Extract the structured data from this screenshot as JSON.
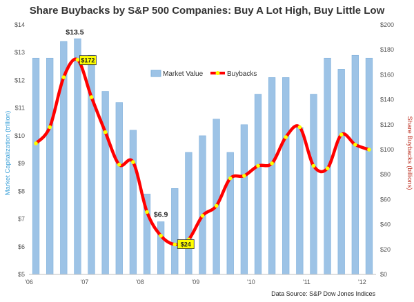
{
  "chart_data": {
    "type": "bar+line",
    "title": "Share Buybacks by S&P 500 Companies: Buy A Lot High, Buy Little Low",
    "ylabel_left": "Market Capitalization (trillion)",
    "ylabel_right": "Share Buybacks (billions)",
    "y_left_ticks": [
      "$5",
      "$6",
      "$7",
      "$8",
      "$9",
      "$10",
      "$11",
      "$12",
      "$13",
      "$14"
    ],
    "y_left_range": [
      5,
      14
    ],
    "y_right_ticks": [
      "$0",
      "$20",
      "$40",
      "$60",
      "$80",
      "$100",
      "$120",
      "$140",
      "$160",
      "$180",
      "$200"
    ],
    "y_right_range": [
      0,
      200
    ],
    "x_tick_labels": [
      "'06",
      "'07",
      "'08",
      "'09",
      "'10",
      "'11",
      "'12"
    ],
    "legend": {
      "position": "top-center",
      "bar_label": "Market Value",
      "line_label": "Buybacks"
    },
    "market_value": [
      12.8,
      12.8,
      13.4,
      13.5,
      12.9,
      11.6,
      11.2,
      10.2,
      7.9,
      6.9,
      8.1,
      9.4,
      10.0,
      10.6,
      9.4,
      10.4,
      11.5,
      12.1,
      12.1,
      10.3,
      11.5,
      12.8,
      12.4,
      12.9,
      12.8
    ],
    "buybacks": [
      105,
      118,
      158,
      172,
      142,
      114,
      88,
      90,
      50,
      31,
      24,
      28,
      47,
      55,
      77,
      79,
      87,
      89,
      110,
      118,
      87,
      85,
      112,
      104,
      100
    ],
    "annotations": {
      "market_value_high": {
        "label": "$13.5",
        "index": 3
      },
      "market_value_low": {
        "label": "$6.9",
        "index": 9
      },
      "buyback_high": {
        "label": "$172",
        "index": 3
      },
      "buyback_low": {
        "label": "$24",
        "index": 10
      }
    },
    "source": "Data Source: S&P Dow Jones Indices",
    "colors": {
      "bar": "#9dc3e6",
      "bar_edge": "#7fb0dc",
      "line": "#ff0000",
      "marker": "#ffff00",
      "callout_fill": "#ffff00"
    }
  }
}
